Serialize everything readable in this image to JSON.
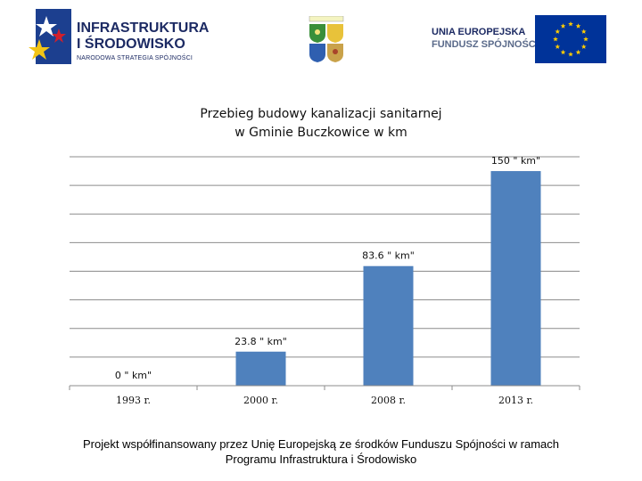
{
  "header": {
    "left_logo": {
      "line1": "INFRASTRUKTURA",
      "line2": "I ŚRODOWISKO",
      "line3": "NARODOWA STRATEGIA SPÓJNOŚCI"
    },
    "eu_logo": {
      "line1": "UNIA EUROPEJSKA",
      "line2": "FUNDUSZ SPÓJNOŚCI"
    },
    "crest_icon": "municipal-coats-of-arms-icon",
    "flag_icon": "eu-flag-icon"
  },
  "chart_data": {
    "type": "bar",
    "title": "Przebieg budowy kanalizacji sanitarnej w Gminie Buczkowice w km",
    "title_lines": [
      "Przebieg budowy kanalizacji sanitarnej",
      "w Gminie Buczkowice w km"
    ],
    "categories": [
      "1993 r.",
      "2000 r.",
      "2008 r.",
      "2013 r."
    ],
    "values": [
      0,
      23.8,
      83.6,
      150
    ],
    "data_labels": [
      "0 \" km\"",
      "23.8 \" km\"",
      "83.6 \" km\"",
      "150 \" km\""
    ],
    "ylim": [
      0,
      160
    ],
    "grid": true,
    "gridline_step": 20,
    "legend": "none",
    "bar_color": "#4f81bd"
  },
  "footer": {
    "line1": "Projekt współfinansowany przez Unię Europejską ze środków Funduszu Spójności w ramach",
    "line2": "Programu Infrastruktura i Środowisko"
  }
}
